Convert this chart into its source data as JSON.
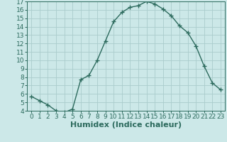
{
  "x": [
    0,
    1,
    2,
    3,
    4,
    5,
    6,
    7,
    8,
    9,
    10,
    11,
    12,
    13,
    14,
    15,
    16,
    17,
    18,
    19,
    20,
    21,
    22,
    23
  ],
  "y": [
    5.7,
    5.2,
    4.7,
    4.0,
    3.8,
    4.2,
    7.7,
    8.2,
    10.0,
    12.3,
    14.6,
    15.7,
    16.3,
    16.5,
    17.0,
    16.7,
    16.1,
    15.3,
    14.1,
    13.3,
    11.7,
    9.3,
    7.3,
    6.5
  ],
  "xlabel": "Humidex (Indice chaleur)",
  "ylim": [
    4,
    17
  ],
  "xlim": [
    -0.5,
    23.5
  ],
  "yticks": [
    4,
    5,
    6,
    7,
    8,
    9,
    10,
    11,
    12,
    13,
    14,
    15,
    16,
    17
  ],
  "xticks": [
    0,
    1,
    2,
    3,
    4,
    5,
    6,
    7,
    8,
    9,
    10,
    11,
    12,
    13,
    14,
    15,
    16,
    17,
    18,
    19,
    20,
    21,
    22,
    23
  ],
  "line_color": "#2d6b5e",
  "marker": "+",
  "marker_size": 4,
  "marker_lw": 1.0,
  "bg_color": "#cce8e8",
  "grid_color": "#aacccc",
  "tick_label_fontsize": 6.5,
  "xlabel_fontsize": 8,
  "line_width": 1.0
}
